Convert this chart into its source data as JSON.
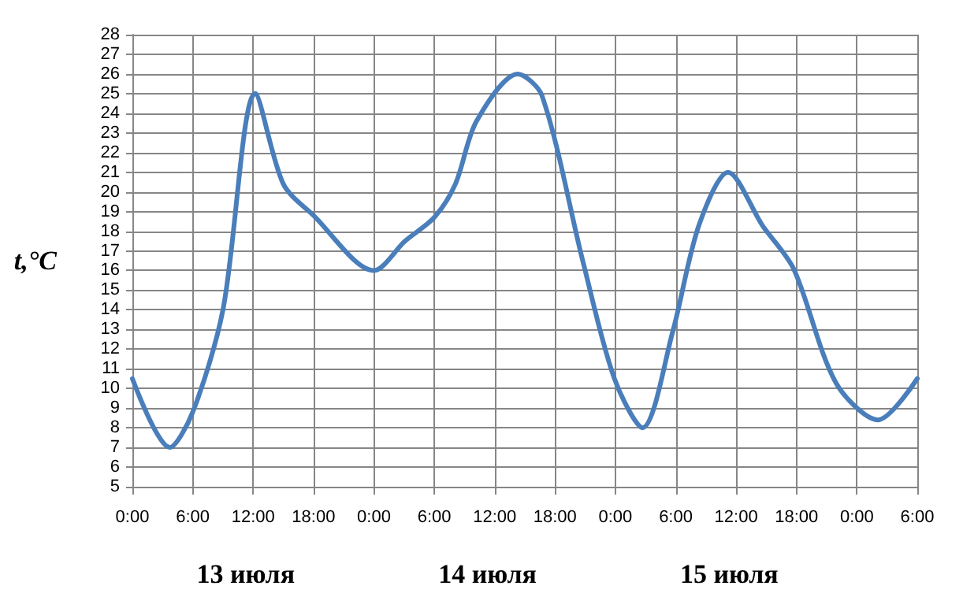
{
  "chart_data": {
    "type": "line",
    "ylabel": "t,°C",
    "x": [
      "--07-13T00:00",
      "--07-13T03:42",
      "--07-13T06:00",
      "--07-13T09:00",
      "--07-13T12:12",
      "--07-13T15:00",
      "--07-13T18:00",
      "--07-14T00:00",
      "--07-14T03:06",
      "--07-14T06:00",
      "--07-14T08:06",
      "--07-14T10:12",
      "--07-14T14:18",
      "--07-14T16:42",
      "--07-14T20:48",
      "--07-14T23:54",
      "--07-15T02:42",
      "--07-15T05:42",
      "--07-15T08:18",
      "--07-15T11:12",
      "--07-15T14:36",
      "--07-15T17:42",
      "--07-15T21:54",
      "--07-16T02:06",
      "--07-16T06:00"
    ],
    "series": [
      {
        "color": "#4a7ebb",
        "values": [
          10.5,
          7.0,
          8.8,
          14.0,
          25.0,
          20.4,
          18.8,
          16.0,
          17.5,
          18.7,
          20.4,
          23.6,
          26.0,
          24.9,
          16.4,
          10.5,
          8.0,
          12.9,
          18.3,
          21.0,
          18.3,
          16.1,
          10.3,
          8.4,
          10.5
        ]
      }
    ],
    "xlim": [
      "--07-13T00:00",
      "--07-16T06:00"
    ],
    "xticks": [
      {
        "value": "--07-13T00:00",
        "label": "0:00"
      },
      {
        "value": "--07-13T06:00",
        "label": "6:00"
      },
      {
        "value": "--07-13T12:00",
        "label": "12:00"
      },
      {
        "value": "--07-13T18:00",
        "label": "18:00"
      },
      {
        "value": "--07-14T00:00",
        "label": "0:00"
      },
      {
        "value": "--07-14T06:00",
        "label": "6:00"
      },
      {
        "value": "--07-14T12:00",
        "label": "12:00"
      },
      {
        "value": "--07-14T18:00",
        "label": "18:00"
      },
      {
        "value": "--07-15T00:00",
        "label": "0:00"
      },
      {
        "value": "--07-15T06:00",
        "label": "6:00"
      },
      {
        "value": "--07-15T12:00",
        "label": "12:00"
      },
      {
        "value": "--07-15T18:00",
        "label": "18:00"
      },
      {
        "value": "--07-16T00:00",
        "label": "0:00"
      },
      {
        "value": "--07-16T06:00",
        "label": "6:00"
      }
    ],
    "ylim": [
      5,
      28
    ],
    "yticks": [
      5,
      6,
      7,
      8,
      9,
      10,
      11,
      12,
      13,
      14,
      15,
      16,
      17,
      18,
      19,
      20,
      21,
      22,
      23,
      24,
      25,
      26,
      27,
      28
    ],
    "annotations": [
      "13 июля",
      "14 июля",
      "15 июля"
    ],
    "grid": true,
    "marker": "none",
    "line_style": "solid"
  }
}
